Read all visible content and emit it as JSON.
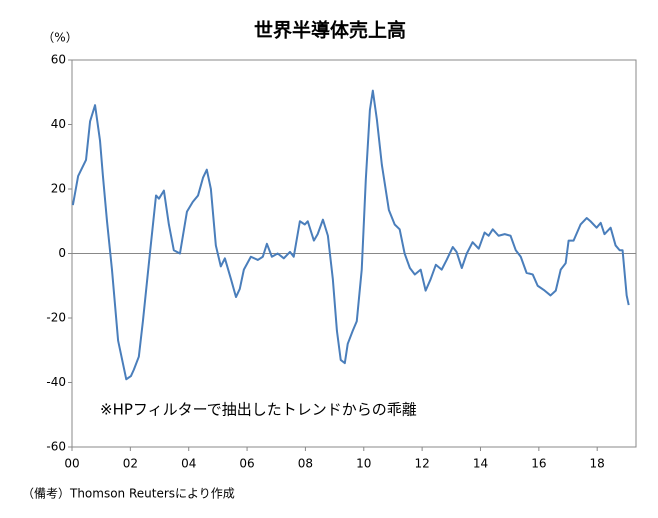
{
  "chart_data": {
    "type": "line",
    "title": "世界半導体売上高",
    "y_label": "（%）",
    "annotation": "※HPフィルターで抽出したトレンドからの乖離",
    "footnote": "（備考）Thomson Reutersにより作成",
    "xlim": [
      2000,
      2019.33
    ],
    "ylim": [
      -60,
      60
    ],
    "yticks": [
      -60,
      -40,
      -20,
      0,
      20,
      40,
      60
    ],
    "xticks": [
      {
        "value": 2000,
        "label": "00"
      },
      {
        "value": 2002,
        "label": "02"
      },
      {
        "value": 2004,
        "label": "04"
      },
      {
        "value": 2006,
        "label": "06"
      },
      {
        "value": 2008,
        "label": "08"
      },
      {
        "value": 2010,
        "label": "10"
      },
      {
        "value": 2012,
        "label": "12"
      },
      {
        "value": 2014,
        "label": "14"
      },
      {
        "value": 2016,
        "label": "16"
      },
      {
        "value": 2018,
        "label": "18"
      }
    ],
    "zero_line": true,
    "series": [
      {
        "color": "#4a7ebb",
        "x": [
          2000.03,
          2000.21,
          2000.48,
          2000.62,
          2000.79,
          2000.96,
          2001.06,
          2001.2,
          2001.37,
          2001.58,
          2001.86,
          2002.02,
          2002.12,
          2002.29,
          2002.43,
          2002.67,
          2002.88,
          2002.98,
          2003.15,
          2003.32,
          2003.49,
          2003.7,
          2003.94,
          2004.14,
          2004.32,
          2004.49,
          2004.62,
          2004.76,
          2004.93,
          2005.1,
          2005.24,
          2005.45,
          2005.62,
          2005.75,
          2005.89,
          2006.13,
          2006.37,
          2006.54,
          2006.68,
          2006.85,
          2007.05,
          2007.26,
          2007.47,
          2007.6,
          2007.81,
          2007.98,
          2008.08,
          2008.29,
          2008.42,
          2008.6,
          2008.77,
          2008.94,
          2009.08,
          2009.21,
          2009.35,
          2009.45,
          2009.62,
          2009.76,
          2009.93,
          2010.07,
          2010.21,
          2010.31,
          2010.45,
          2010.62,
          2010.86,
          2011.06,
          2011.23,
          2011.4,
          2011.58,
          2011.75,
          2011.95,
          2012.12,
          2012.29,
          2012.47,
          2012.67,
          2012.84,
          2013.05,
          2013.18,
          2013.36,
          2013.53,
          2013.73,
          2013.94,
          2014.14,
          2014.28,
          2014.42,
          2014.62,
          2014.83,
          2015.03,
          2015.21,
          2015.38,
          2015.58,
          2015.79,
          2015.96,
          2016.2,
          2016.4,
          2016.58,
          2016.75,
          2016.92,
          2017.02,
          2017.19,
          2017.43,
          2017.64,
          2017.77,
          2017.98,
          2018.12,
          2018.25,
          2018.46,
          2018.63,
          2018.77,
          2018.87,
          2019.01,
          2019.08
        ],
        "values": [
          15,
          24,
          29,
          41,
          46,
          35,
          24,
          10,
          -5,
          -27,
          -39,
          -38,
          -36,
          -32,
          -21,
          0,
          18,
          17,
          19.5,
          9,
          1,
          0,
          13,
          16,
          18,
          23.5,
          26,
          20,
          2.5,
          -4,
          -1.5,
          -8,
          -13.5,
          -11,
          -5,
          -1,
          -2,
          -1,
          3,
          -1,
          0,
          -1.5,
          0.5,
          -1,
          10,
          9,
          10,
          4,
          6,
          10.5,
          5.5,
          -8,
          -24,
          -33,
          -34,
          -28,
          -24,
          -21,
          -5,
          23,
          44.5,
          50.5,
          41.5,
          27.5,
          13.5,
          9,
          7.5,
          0,
          -4.5,
          -6.5,
          -5,
          -11.5,
          -8,
          -3.5,
          -5,
          -2,
          2,
          0.5,
          -4.5,
          0,
          3.5,
          1.5,
          6.5,
          5.5,
          7.5,
          5.5,
          6,
          5.5,
          1,
          -1,
          -6,
          -6.5,
          -10,
          -11.5,
          -13,
          -11.5,
          -5,
          -3,
          4,
          4,
          9,
          11,
          10,
          8,
          9.5,
          6,
          8,
          2.5,
          1,
          1,
          -13,
          -16
        ]
      }
    ]
  }
}
